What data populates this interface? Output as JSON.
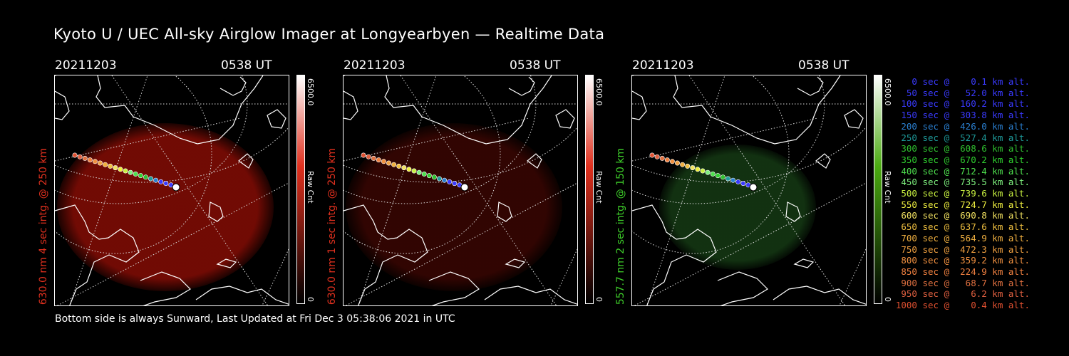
{
  "title": "Kyoto U / UEC All-sky Airglow Imager at Longyearbyen — Realtime Data",
  "footer": "Bottom side is always Sunward, Last Updated at Fri Dec  3 05:38:06 2021 in UTC",
  "panels": [
    {
      "date": "20211203",
      "time": "0538 UT",
      "ylabel": "630.0 nm 4 sec intg. @ 250 km",
      "ylabel_color": "#e0301e",
      "cbar_max": "6500.0",
      "cbar_unit": "Raw Cnt",
      "cbar_min": "0",
      "glow": "#8a0d05",
      "glow_opacity": 0.82,
      "cbar_color": "#e0301e"
    },
    {
      "date": "20211203",
      "time": "0538 UT",
      "ylabel": "630.0 nm 1 sec intg. @ 250 km",
      "ylabel_color": "#e0301e",
      "cbar_max": "6500.0",
      "cbar_unit": "Raw Cnt",
      "cbar_min": "0",
      "glow": "#3a0602",
      "glow_opacity": 0.85,
      "cbar_color": "#e0301e"
    },
    {
      "date": "20211203",
      "time": "0538 UT",
      "ylabel": "557.7 nm 2 sec intg. @ 150 km",
      "ylabel_color": "#3ecf2a",
      "cbar_max": "6500.0",
      "cbar_unit": "Raw Cnt",
      "cbar_min": "0",
      "glow": "#153a14",
      "glow_opacity": 0.85,
      "cbar_color": "#4aaa10"
    }
  ],
  "legend": [
    {
      "text": "   0 sec @    0.1 km alt.",
      "color": "#3a3aff"
    },
    {
      "text": "  50 sec @   52.0 km alt.",
      "color": "#3a3aff"
    },
    {
      "text": " 100 sec @  160.2 km alt.",
      "color": "#3a3aff"
    },
    {
      "text": " 150 sec @  303.8 km alt.",
      "color": "#3a3aff"
    },
    {
      "text": " 200 sec @  426.0 km alt.",
      "color": "#2a7fd0"
    },
    {
      "text": " 250 sec @  527.4 km alt.",
      "color": "#1e9a9a"
    },
    {
      "text": " 300 sec @  608.6 km alt.",
      "color": "#2fc02f"
    },
    {
      "text": " 350 sec @  670.2 km alt.",
      "color": "#2fd02f"
    },
    {
      "text": " 400 sec @  712.4 km alt.",
      "color": "#4ee04e"
    },
    {
      "text": " 450 sec @  735.5 km alt.",
      "color": "#7ef07e"
    },
    {
      "text": " 500 sec @  739.6 km alt.",
      "color": "#c8f040"
    },
    {
      "text": " 550 sec @  724.7 km alt.",
      "color": "#f0f040"
    },
    {
      "text": " 600 sec @  690.8 km alt.",
      "color": "#f0e060"
    },
    {
      "text": " 650 sec @  637.6 km alt.",
      "color": "#f0c040"
    },
    {
      "text": " 700 sec @  564.9 km alt.",
      "color": "#f0b040"
    },
    {
      "text": " 750 sec @  472.3 km alt.",
      "color": "#f0a040"
    },
    {
      "text": " 800 sec @  359.2 km alt.",
      "color": "#f09040"
    },
    {
      "text": " 850 sec @  224.9 km alt.",
      "color": "#f08040"
    },
    {
      "text": " 900 sec @   68.7 km alt.",
      "color": "#e07040"
    },
    {
      "text": " 950 sec @    6.2 km alt.",
      "color": "#e06040"
    },
    {
      "text": "1000 sec @    0.4 km alt.",
      "color": "#e05030"
    }
  ]
}
